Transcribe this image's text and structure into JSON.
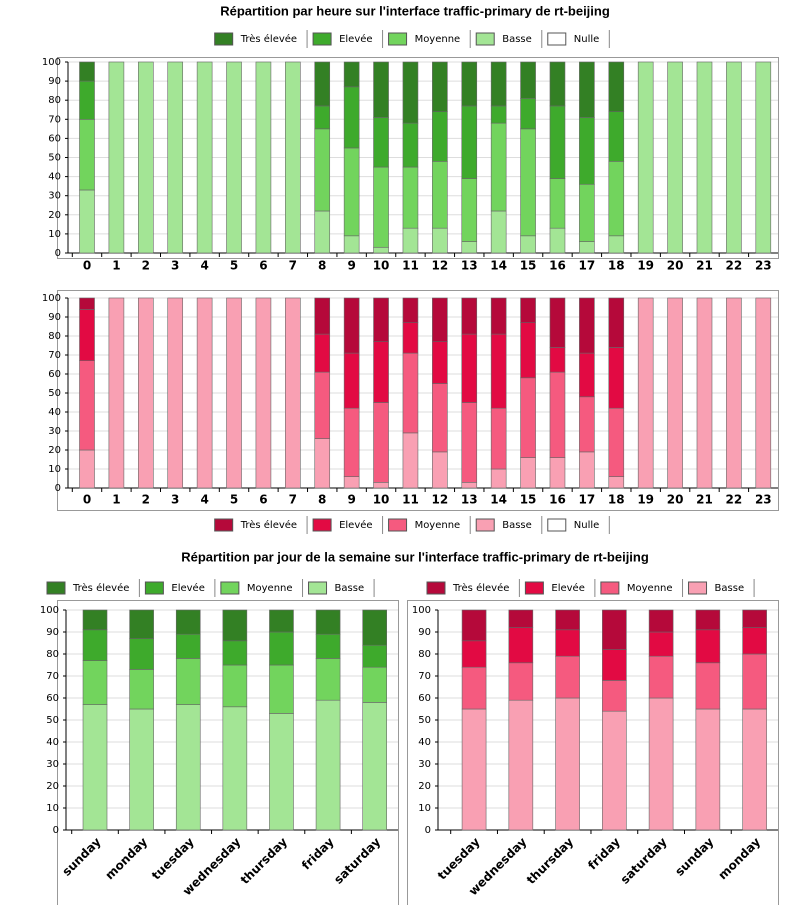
{
  "chart_data": [
    {
      "type": "bar",
      "stacked": true,
      "title": "Répartition par heure sur l'interface traffic-primary de rt-beijing",
      "categories": [
        "0",
        "1",
        "2",
        "3",
        "4",
        "5",
        "6",
        "7",
        "8",
        "9",
        "10",
        "11",
        "12",
        "13",
        "14",
        "15",
        "16",
        "17",
        "18",
        "19",
        "20",
        "21",
        "22",
        "23"
      ],
      "series": [
        {
          "name": "Très élevée",
          "color": "#338024",
          "values": [
            10,
            0,
            0,
            0,
            0,
            0,
            0,
            0,
            23,
            13,
            29,
            32,
            26,
            23,
            23,
            19,
            23,
            29,
            26,
            0,
            0,
            0,
            0,
            0
          ]
        },
        {
          "name": "Elevée",
          "color": "#3eaa2c",
          "values": [
            20,
            0,
            0,
            0,
            0,
            0,
            0,
            0,
            12,
            32,
            26,
            23,
            26,
            38,
            9,
            16,
            38,
            35,
            26,
            0,
            0,
            0,
            0,
            0
          ]
        },
        {
          "name": "Moyenne",
          "color": "#72d45d",
          "values": [
            37,
            0,
            0,
            0,
            0,
            0,
            0,
            0,
            43,
            46,
            42,
            32,
            35,
            33,
            46,
            56,
            26,
            30,
            39,
            0,
            0,
            0,
            0,
            0
          ]
        },
        {
          "name": "Basse",
          "color": "#a3e595",
          "values": [
            33,
            100,
            100,
            100,
            100,
            100,
            100,
            100,
            22,
            9,
            3,
            13,
            13,
            6,
            22,
            9,
            13,
            6,
            9,
            100,
            100,
            100,
            100,
            100
          ]
        },
        {
          "name": "Nulle",
          "color": "#ffffff",
          "values": [
            0,
            0,
            0,
            0,
            0,
            0,
            0,
            0,
            0,
            0,
            0,
            0,
            0,
            0,
            0,
            0,
            0,
            0,
            0,
            0,
            0,
            0,
            0,
            0
          ]
        }
      ],
      "ylim": [
        0,
        100
      ],
      "yticks": [
        0,
        10,
        20,
        30,
        40,
        50,
        60,
        70,
        80,
        90,
        100
      ],
      "grid": true,
      "legend": "top"
    },
    {
      "type": "bar",
      "stacked": true,
      "categories": [
        "0",
        "1",
        "2",
        "3",
        "4",
        "5",
        "6",
        "7",
        "8",
        "9",
        "10",
        "11",
        "12",
        "13",
        "14",
        "15",
        "16",
        "17",
        "18",
        "19",
        "20",
        "21",
        "22",
        "23"
      ],
      "series": [
        {
          "name": "Très élevée",
          "color": "#b5093a",
          "values": [
            6,
            0,
            0,
            0,
            0,
            0,
            0,
            0,
            19,
            29,
            23,
            13,
            23,
            19,
            19,
            13,
            26,
            29,
            26,
            0,
            0,
            0,
            0,
            0
          ]
        },
        {
          "name": "Elevée",
          "color": "#e20a43",
          "values": [
            27,
            0,
            0,
            0,
            0,
            0,
            0,
            0,
            20,
            29,
            32,
            16,
            22,
            36,
            39,
            29,
            13,
            23,
            32,
            0,
            0,
            0,
            0,
            0
          ]
        },
        {
          "name": "Moyenne",
          "color": "#f55a7f",
          "values": [
            47,
            0,
            0,
            0,
            0,
            0,
            0,
            0,
            35,
            36,
            42,
            42,
            36,
            42,
            32,
            42,
            45,
            29,
            36,
            0,
            0,
            0,
            0,
            0
          ]
        },
        {
          "name": "Basse",
          "color": "#f9a0b3",
          "values": [
            20,
            100,
            100,
            100,
            100,
            100,
            100,
            100,
            26,
            6,
            3,
            29,
            19,
            3,
            10,
            16,
            16,
            19,
            6,
            100,
            100,
            100,
            100,
            100
          ]
        },
        {
          "name": "Nulle",
          "color": "#ffffff",
          "values": [
            0,
            0,
            0,
            0,
            0,
            0,
            0,
            0,
            0,
            0,
            0,
            0,
            0,
            0,
            0,
            0,
            0,
            0,
            0,
            0,
            0,
            0,
            0,
            0
          ]
        }
      ],
      "ylim": [
        0,
        100
      ],
      "yticks": [
        0,
        10,
        20,
        30,
        40,
        50,
        60,
        70,
        80,
        90,
        100
      ],
      "grid": true,
      "legend": "bottom"
    },
    {
      "type": "bar",
      "stacked": true,
      "title": "Répartition par jour de la semaine sur l'interface traffic-primary de rt-beijing",
      "categories": [
        "sunday",
        "monday",
        "tuesday",
        "wednesday",
        "thursday",
        "friday",
        "saturday"
      ],
      "series": [
        {
          "name": "Très élevée",
          "color": "#338024",
          "values": [
            9,
            13,
            11,
            14,
            10,
            11,
            16
          ]
        },
        {
          "name": "Elevée",
          "color": "#3eaa2c",
          "values": [
            14,
            14,
            11,
            11,
            15,
            11,
            10
          ]
        },
        {
          "name": "Moyenne",
          "color": "#72d45d",
          "values": [
            20,
            18,
            21,
            19,
            22,
            19,
            16
          ]
        },
        {
          "name": "Basse",
          "color": "#a3e595",
          "values": [
            57,
            55,
            57,
            56,
            53,
            59,
            58
          ]
        }
      ],
      "ylim": [
        0,
        100
      ],
      "yticks": [
        0,
        10,
        20,
        30,
        40,
        50,
        60,
        70,
        80,
        90,
        100
      ],
      "grid": true,
      "legend": "top"
    },
    {
      "type": "bar",
      "stacked": true,
      "categories": [
        "tuesday",
        "wednesday",
        "thursday",
        "friday",
        "saturday",
        "sunday",
        "monday"
      ],
      "series": [
        {
          "name": "Très élevée",
          "color": "#b5093a",
          "values": [
            14,
            8,
            9,
            18,
            10,
            9,
            8
          ]
        },
        {
          "name": "Elevée",
          "color": "#e20a43",
          "values": [
            12,
            16,
            12,
            14,
            11,
            15,
            12
          ]
        },
        {
          "name": "Moyenne",
          "color": "#f55a7f",
          "values": [
            19,
            17,
            19,
            14,
            19,
            21,
            25
          ]
        },
        {
          "name": "Basse",
          "color": "#f9a0b3",
          "values": [
            55,
            59,
            60,
            54,
            60,
            55,
            55
          ]
        }
      ],
      "ylim": [
        0,
        100
      ],
      "yticks": [
        0,
        10,
        20,
        30,
        40,
        50,
        60,
        70,
        80,
        90,
        100
      ],
      "grid": true,
      "legend": "top"
    }
  ]
}
